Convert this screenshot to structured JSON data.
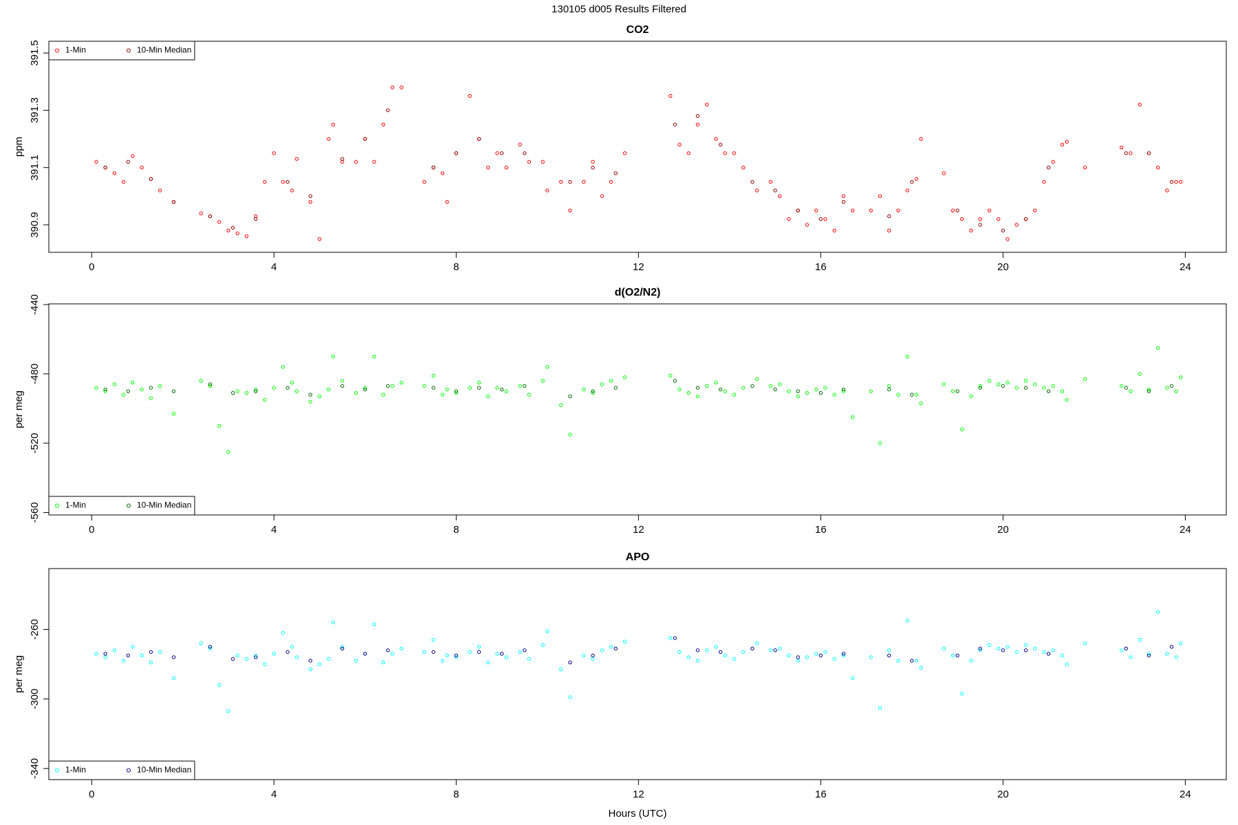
{
  "title": "130105   d005   Results Filtered",
  "chart_data": [
    {
      "type": "scatter",
      "title": "CO2",
      "ylabel": "ppm",
      "legend": "top-left",
      "xlim": [
        -0.94,
        24.9
      ],
      "xticks": [
        0,
        4,
        8,
        12,
        16,
        20,
        24
      ],
      "ylim": [
        390.804,
        391.541
      ],
      "yticks": [
        390.9,
        391.1,
        391.3,
        391.5
      ],
      "x": [
        0.1,
        0.3,
        0.5,
        0.7,
        0.9,
        1.1,
        1.3,
        1.5,
        1.8,
        2.4,
        2.6,
        2.8,
        3.0,
        3.2,
        3.4,
        3.6,
        3.8,
        4.0,
        4.2,
        4.4,
        4.5,
        4.8,
        5.0,
        5.2,
        5.3,
        5.5,
        5.8,
        6.0,
        6.2,
        6.4,
        6.6,
        6.8,
        7.3,
        7.5,
        7.7,
        7.8,
        8.0,
        8.3,
        8.5,
        8.7,
        8.9,
        9.1,
        9.4,
        9.6,
        9.9,
        10.0,
        10.3,
        10.5,
        10.8,
        11.0,
        11.2,
        11.4,
        11.7,
        12.7,
        12.9,
        13.1,
        13.3,
        13.5,
        13.7,
        13.9,
        14.1,
        14.3,
        14.6,
        14.9,
        15.1,
        15.3,
        15.5,
        15.7,
        15.9,
        16.1,
        16.3,
        16.5,
        16.7,
        17.1,
        17.3,
        17.5,
        17.7,
        17.9,
        18.1,
        18.2,
        18.7,
        18.9,
        19.1,
        19.3,
        19.5,
        19.7,
        19.9,
        20.1,
        20.3,
        20.5,
        20.7,
        20.9,
        21.1,
        21.3,
        21.4,
        21.8,
        22.6,
        22.8,
        23.0,
        23.2,
        23.4,
        23.6,
        23.8,
        23.9
      ],
      "series": [
        {
          "name": "1-Min",
          "color": "#ff0000",
          "values": [
            391.12,
            391.1,
            391.08,
            391.05,
            391.14,
            391.1,
            391.06,
            391.02,
            390.98,
            390.94,
            390.93,
            390.91,
            390.88,
            390.87,
            390.86,
            390.93,
            391.05,
            391.15,
            391.05,
            391.02,
            391.13,
            390.98,
            390.85,
            391.2,
            391.25,
            391.12,
            391.12,
            391.2,
            391.12,
            391.25,
            391.38,
            391.38,
            391.05,
            391.1,
            391.08,
            390.98,
            391.15,
            391.35,
            391.2,
            391.1,
            391.15,
            391.1,
            391.18,
            391.12,
            391.12,
            391.02,
            391.05,
            390.95,
            391.05,
            391.12,
            391.0,
            391.05,
            391.15,
            391.35,
            391.18,
            391.15,
            391.25,
            391.32,
            391.2,
            391.15,
            391.15,
            391.1,
            391.02,
            391.05,
            391.0,
            390.92,
            390.95,
            390.9,
            390.95,
            390.92,
            390.88,
            391.0,
            390.95,
            390.95,
            391.0,
            390.88,
            390.95,
            391.02,
            391.06,
            391.2,
            391.08,
            390.95,
            390.92,
            390.88,
            390.92,
            390.95,
            390.92,
            390.85,
            390.9,
            390.92,
            390.95,
            391.05,
            391.12,
            391.18,
            391.19,
            391.1,
            391.17,
            391.15,
            391.32,
            391.15,
            391.1,
            391.02,
            391.05,
            391.05
          ]
        },
        {
          "name": "10-Min Median",
          "color": "#8b0000",
          "x": [
            0.3,
            0.8,
            1.3,
            1.8,
            2.6,
            3.1,
            3.6,
            4.3,
            4.8,
            5.5,
            6.0,
            6.5,
            7.5,
            8.0,
            8.5,
            9.0,
            9.5,
            10.5,
            11.0,
            11.5,
            12.8,
            13.3,
            13.8,
            14.5,
            15.0,
            15.5,
            16.0,
            16.5,
            17.5,
            18.0,
            19.0,
            19.5,
            20.0,
            20.5,
            21.0,
            22.7,
            23.2,
            23.7
          ],
          "values": [
            391.1,
            391.12,
            391.06,
            390.98,
            390.93,
            390.89,
            390.92,
            391.05,
            391.0,
            391.13,
            391.2,
            391.3,
            391.1,
            391.15,
            391.2,
            391.15,
            391.15,
            391.05,
            391.1,
            391.08,
            391.25,
            391.28,
            391.18,
            391.05,
            391.02,
            390.95,
            390.92,
            390.98,
            390.93,
            391.05,
            390.95,
            390.9,
            390.88,
            390.92,
            391.1,
            391.15,
            391.15,
            391.05
          ]
        }
      ]
    },
    {
      "type": "scatter",
      "title": "d(O2/N2)",
      "ylabel": "per meg",
      "legend": "bottom-left",
      "xlim": [
        -0.94,
        24.9
      ],
      "xticks": [
        0,
        4,
        8,
        12,
        16,
        20,
        24
      ],
      "ylim": [
        -561.4,
        -439.6
      ],
      "yticks": [
        -560,
        -520,
        -480,
        -440
      ],
      "x": [
        0.1,
        0.3,
        0.5,
        0.7,
        0.9,
        1.1,
        1.3,
        1.5,
        1.8,
        2.4,
        2.6,
        2.8,
        3.0,
        3.2,
        3.4,
        3.6,
        3.8,
        4.0,
        4.2,
        4.4,
        4.5,
        4.8,
        5.0,
        5.2,
        5.3,
        5.5,
        5.8,
        6.0,
        6.2,
        6.4,
        6.6,
        6.8,
        7.3,
        7.5,
        7.7,
        7.8,
        8.0,
        8.3,
        8.5,
        8.7,
        8.9,
        9.1,
        9.4,
        9.6,
        9.9,
        10.0,
        10.3,
        10.5,
        10.8,
        11.0,
        11.2,
        11.4,
        11.7,
        12.7,
        12.9,
        13.1,
        13.3,
        13.5,
        13.7,
        13.9,
        14.1,
        14.3,
        14.6,
        14.9,
        15.1,
        15.3,
        15.5,
        15.7,
        15.9,
        16.1,
        16.3,
        16.5,
        16.7,
        17.1,
        17.3,
        17.5,
        17.7,
        17.9,
        18.1,
        18.2,
        18.7,
        18.9,
        19.1,
        19.3,
        19.5,
        19.7,
        19.9,
        20.1,
        20.3,
        20.5,
        20.7,
        20.9,
        21.1,
        21.3,
        21.4,
        21.8,
        22.6,
        22.8,
        23.0,
        23.2,
        23.4,
        23.6,
        23.8,
        23.9
      ],
      "series": [
        {
          "name": "1-Min",
          "color": "#00ff00",
          "values": [
            -488,
            -490,
            -486,
            -492,
            -485,
            -489,
            -494,
            -487,
            -503,
            -484,
            -487,
            -510,
            -525,
            -490,
            -491,
            -489,
            -495,
            -488,
            -476,
            -485,
            -490,
            -496,
            -493,
            -489,
            -470,
            -484,
            -491,
            -488,
            -470,
            -492,
            -487,
            -485,
            -487,
            -481,
            -492,
            -489,
            -491,
            -488,
            -485,
            -493,
            -488,
            -490,
            -487,
            -492,
            -484,
            -476,
            -498,
            -515,
            -489,
            -491,
            -486,
            -484,
            -482,
            -481,
            -489,
            -491,
            -493,
            -487,
            -485,
            -490,
            -492,
            -488,
            -483,
            -487,
            -486,
            -490,
            -493,
            -491,
            -489,
            -488,
            -492,
            -490,
            -505,
            -490,
            -520,
            -487,
            -492,
            -470,
            -492,
            -497,
            -486,
            -490,
            -512,
            -493,
            -487,
            -484,
            -486,
            -485,
            -488,
            -484,
            -486,
            -488,
            -487,
            -490,
            -495,
            -483,
            -487,
            -490,
            -480,
            -489,
            -465,
            -488,
            -490,
            -482
          ]
        },
        {
          "name": "10-Min Median",
          "color": "#006400",
          "x": [
            0.3,
            0.8,
            1.3,
            1.8,
            2.6,
            3.1,
            3.6,
            4.3,
            4.8,
            5.5,
            6.0,
            6.5,
            7.5,
            8.0,
            8.5,
            9.0,
            9.5,
            10.5,
            11.0,
            11.5,
            12.8,
            13.3,
            13.8,
            14.5,
            15.0,
            15.5,
            16.0,
            16.5,
            17.5,
            18.0,
            19.0,
            19.5,
            20.0,
            20.5,
            21.0,
            22.7,
            23.2,
            23.7
          ],
          "values": [
            -489,
            -490,
            -488,
            -490,
            -486,
            -491,
            -490,
            -488,
            -492,
            -487,
            -489,
            -487,
            -488,
            -490,
            -488,
            -489,
            -487,
            -493,
            -490,
            -488,
            -484,
            -488,
            -489,
            -487,
            -489,
            -490,
            -491,
            -489,
            -489,
            -492,
            -490,
            -488,
            -487,
            -488,
            -490,
            -488,
            -490,
            -487
          ]
        }
      ]
    },
    {
      "type": "scatter",
      "title": "APO",
      "ylabel": "per meg",
      "xlabel": "Hours (UTC)",
      "legend": "bottom-left",
      "xlim": [
        -0.94,
        24.9
      ],
      "xticks": [
        0,
        4,
        8,
        12,
        16,
        20,
        24
      ],
      "ylim": [
        -346.4,
        -225
      ],
      "yticks": [
        -340,
        -300,
        -260
      ],
      "x": [
        0.1,
        0.3,
        0.5,
        0.7,
        0.9,
        1.1,
        1.3,
        1.5,
        1.8,
        2.4,
        2.6,
        2.8,
        3.0,
        3.2,
        3.4,
        3.6,
        3.8,
        4.0,
        4.2,
        4.4,
        4.5,
        4.8,
        5.0,
        5.2,
        5.3,
        5.5,
        5.8,
        6.0,
        6.2,
        6.4,
        6.6,
        6.8,
        7.3,
        7.5,
        7.7,
        7.8,
        8.0,
        8.3,
        8.5,
        8.7,
        8.9,
        9.1,
        9.4,
        9.6,
        9.9,
        10.0,
        10.3,
        10.5,
        10.8,
        11.0,
        11.2,
        11.4,
        11.7,
        12.7,
        12.9,
        13.1,
        13.3,
        13.5,
        13.7,
        13.9,
        14.1,
        14.3,
        14.6,
        14.9,
        15.1,
        15.3,
        15.5,
        15.7,
        15.9,
        16.1,
        16.3,
        16.5,
        16.7,
        17.1,
        17.3,
        17.5,
        17.7,
        17.9,
        18.1,
        18.2,
        18.7,
        18.9,
        19.1,
        19.3,
        19.5,
        19.7,
        19.9,
        20.1,
        20.3,
        20.5,
        20.7,
        20.9,
        21.1,
        21.3,
        21.4,
        21.8,
        22.6,
        22.8,
        23.0,
        23.2,
        23.4,
        23.6,
        23.8,
        23.9
      ],
      "series": [
        {
          "name": "1-Min",
          "color": "#00ffff",
          "values": [
            -274,
            -276,
            -272,
            -278,
            -270,
            -275,
            -279,
            -273,
            -288,
            -268,
            -271,
            -292,
            -307,
            -275,
            -277,
            -275,
            -280,
            -274,
            -262,
            -270,
            -276,
            -283,
            -280,
            -277,
            -256,
            -270,
            -278,
            -274,
            -257,
            -279,
            -274,
            -271,
            -273,
            -266,
            -278,
            -275,
            -276,
            -273,
            -270,
            -279,
            -274,
            -276,
            -273,
            -277,
            -269,
            -261,
            -283,
            -299,
            -275,
            -277,
            -272,
            -270,
            -267,
            -265,
            -273,
            -276,
            -278,
            -272,
            -270,
            -275,
            -277,
            -273,
            -268,
            -272,
            -271,
            -275,
            -278,
            -276,
            -274,
            -273,
            -277,
            -275,
            -288,
            -276,
            -305,
            -272,
            -278,
            -255,
            -278,
            -282,
            -271,
            -275,
            -297,
            -278,
            -272,
            -269,
            -271,
            -270,
            -273,
            -269,
            -271,
            -273,
            -272,
            -275,
            -280,
            -268,
            -272,
            -276,
            -266,
            -274,
            -250,
            -274,
            -276,
            -268
          ]
        },
        {
          "name": "10-Min Median",
          "color": "#000080",
          "x": [
            0.3,
            0.8,
            1.3,
            1.8,
            2.6,
            3.1,
            3.6,
            4.3,
            4.8,
            5.5,
            6.0,
            6.5,
            7.5,
            8.0,
            8.5,
            9.0,
            9.5,
            10.5,
            11.0,
            11.5,
            12.8,
            13.3,
            13.8,
            14.5,
            15.0,
            15.5,
            16.0,
            16.5,
            17.5,
            18.0,
            19.0,
            19.5,
            20.0,
            20.5,
            21.0,
            22.7,
            23.2,
            23.7
          ],
          "values": [
            -274,
            -275,
            -273,
            -276,
            -270,
            -277,
            -276,
            -273,
            -278,
            -271,
            -274,
            -272,
            -273,
            -275,
            -273,
            -274,
            -272,
            -279,
            -275,
            -271,
            -265,
            -272,
            -273,
            -271,
            -272,
            -276,
            -275,
            -274,
            -275,
            -278,
            -275,
            -271,
            -272,
            -272,
            -274,
            -271,
            -275,
            -270
          ]
        }
      ]
    }
  ]
}
